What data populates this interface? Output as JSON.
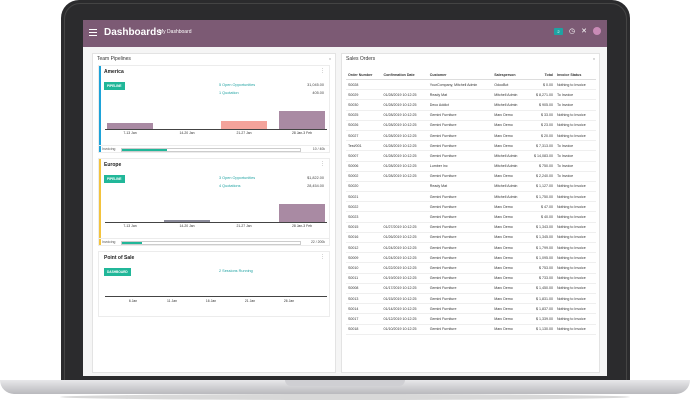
{
  "navbar": {
    "app_title": "Dashboards",
    "menu_item": "My Dashboard",
    "chat_badge": "2"
  },
  "left_panel": {
    "title": "Team Pipelines",
    "close": "x",
    "america": {
      "name": "America",
      "tag": "PIPELINE",
      "stat1_label": "5 Open Opportunities",
      "stat1_value": "31,045.00",
      "stat2_label": "1 Quotation",
      "stat2_value": "405.00",
      "ticks": [
        "7-13 Jan",
        "14-20 Jan",
        "21-27 Jan",
        "28 Jan-3 Feb"
      ],
      "invoicing_label": "Invoicing",
      "invoicing_value": "10 / 40k",
      "invoicing_fraction": 0.25
    },
    "europe": {
      "name": "Europe",
      "tag": "PIPELINE",
      "stat1_label": "3 Open Opportunities",
      "stat1_value": "$1,822.00",
      "stat2_label": "4 Quotations",
      "stat2_value": "28,454.00",
      "ticks": [
        "7-13 Jan",
        "14-20 Jan",
        "21-27 Jan",
        "28 Jan-3 Feb"
      ],
      "invoicing_label": "Invoicing",
      "invoicing_value": "22 / 200k",
      "invoicing_fraction": 0.11
    },
    "pos": {
      "name": "Point of Sale",
      "tag": "DASHBOARD",
      "stat1_label": "2 Sessions Running",
      "ticks": [
        "6 Jan",
        "11 Jan",
        "16 Jan",
        "21 Jan",
        "26 Jan"
      ]
    }
  },
  "right_panel": {
    "title": "Sales Orders",
    "close": "x",
    "headers": [
      "Order Number",
      "Confirmation Date",
      "Customer",
      "Salesperson",
      "Total",
      "Invoice Status"
    ],
    "rows": [
      [
        "S0028",
        "",
        "YourCompany, Mitchell Admin",
        "OdooBot",
        "$ 0.00",
        "Nothing to Invoice"
      ],
      [
        "S0029",
        "01/28/2019 10:12:25",
        "Ready Mat",
        "Mitchell Admin",
        "$ 8,271.00",
        "To Invoice"
      ],
      [
        "S0030",
        "01/28/2019 10:12:25",
        "Deco Addict",
        "Mitchell Admin",
        "$ 905.00",
        "To Invoice"
      ],
      [
        "S0025",
        "01/28/2019 10:12:25",
        "Gemini Furniture",
        "Marc Demo",
        "$ 33.00",
        "Nothing to Invoice"
      ],
      [
        "S0026",
        "01/28/2019 10:12:25",
        "Gemini Furniture",
        "Marc Demo",
        "$ 23.00",
        "Nothing to Invoice"
      ],
      [
        "S0027",
        "01/28/2019 10:12:25",
        "Gemini Furniture",
        "Marc Demo",
        "$ 20.00",
        "Nothing to Invoice"
      ],
      [
        "Test/001",
        "01/28/2019 10:12:25",
        "Gemini Furniture",
        "Marc Demo",
        "$ 7,313.00",
        "To Invoice"
      ],
      [
        "S0007",
        "01/28/2019 10:12:25",
        "Gemini Furniture",
        "Mitchell Admin",
        "$ 14,083.00",
        "To Invoice"
      ],
      [
        "S0006",
        "01/28/2019 10:12:25",
        "Lumber Inc",
        "Mitchell Admin",
        "$ 750.00",
        "To Invoice"
      ],
      [
        "S0002",
        "01/28/2019 10:12:25",
        "Gemini Furniture",
        "Marc Demo",
        "$ 2,240.00",
        "To Invoice"
      ],
      [
        "S0020",
        "",
        "Ready Mat",
        "Mitchell Admin",
        "$ 1,127.00",
        "Nothing to Invoice"
      ],
      [
        "S0021",
        "",
        "Gemini Furniture",
        "Mitchell Admin",
        "$ 1,750.00",
        "Nothing to Invoice"
      ],
      [
        "S0022",
        "",
        "Gemini Furniture",
        "Marc Demo",
        "$ 47.00",
        "Nothing to Invoice"
      ],
      [
        "S0023",
        "",
        "Gemini Furniture",
        "Marc Demo",
        "$ 40.00",
        "Nothing to Invoice"
      ],
      [
        "S0015",
        "01/27/2019 10:12:25",
        "Gemini Furniture",
        "Marc Demo",
        "$ 1,343.00",
        "Nothing to Invoice"
      ],
      [
        "S0016",
        "01/26/2019 10:12:25",
        "Gemini Furniture",
        "Marc Demo",
        "$ 1,345.00",
        "Nothing to Invoice"
      ],
      [
        "S0012",
        "01/24/2019 10:12:25",
        "Gemini Furniture",
        "Marc Demo",
        "$ 1,799.00",
        "Nothing to Invoice"
      ],
      [
        "S0009",
        "01/24/2019 10:12:25",
        "Gemini Furniture",
        "Marc Demo",
        "$ 1,095.00",
        "Nothing to Invoice"
      ],
      [
        "S0010",
        "01/22/2019 10:12:25",
        "Gemini Furniture",
        "Marc Demo",
        "$ 753.00",
        "Nothing to Invoice"
      ],
      [
        "S0011",
        "01/19/2019 10:12:25",
        "Gemini Furniture",
        "Marc Demo",
        "$ 733.00",
        "Nothing to Invoice"
      ],
      [
        "S0008",
        "01/17/2019 10:12:25",
        "Gemini Furniture",
        "Marc Demo",
        "$ 1,450.00",
        "Nothing to Invoice"
      ],
      [
        "S0013",
        "01/15/2019 10:12:25",
        "Gemini Furniture",
        "Marc Demo",
        "$ 1,831.00",
        "Nothing to Invoice"
      ],
      [
        "S0014",
        "01/14/2019 10:12:25",
        "Gemini Furniture",
        "Marc Demo",
        "$ 1,837.00",
        "Nothing to Invoice"
      ],
      [
        "S0017",
        "01/12/2019 10:12:25",
        "Gemini Furniture",
        "Marc Demo",
        "$ 1,339.00",
        "Nothing to Invoice"
      ],
      [
        "S0018",
        "01/10/2019 10:12:25",
        "Gemini Furniture",
        "Marc Demo",
        "$ 1,130.00",
        "Nothing to Invoice"
      ]
    ]
  },
  "colors": {
    "navbar": "#7c5a74",
    "accent_teal": "#21b799",
    "bar_purple": "#a98aa3",
    "bar_highlight": "#f4a39b",
    "bar_gray": "#8a8a99"
  }
}
